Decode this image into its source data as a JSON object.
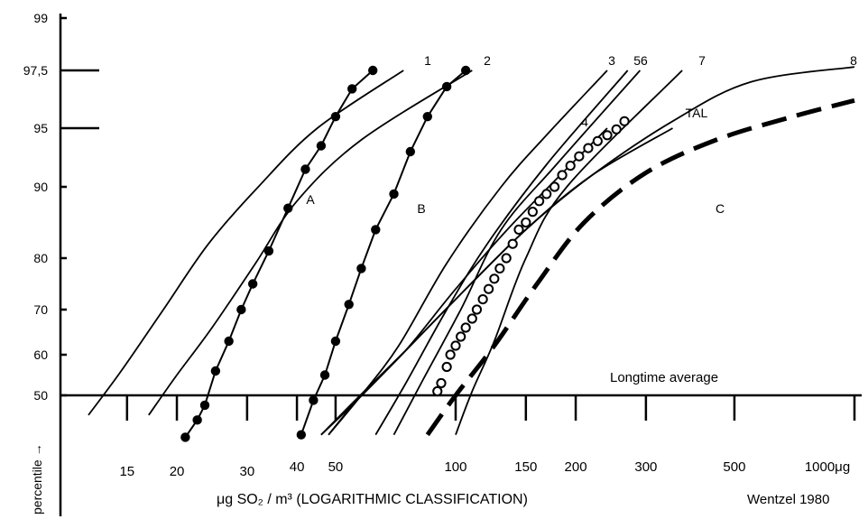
{
  "chart_data": {
    "type": "line",
    "xlabel": "μg SO₂ / m³ (LOGARITHMIC CLASSIFICATION)",
    "ylabel": "percentile →",
    "credit": "Wentzel 1980",
    "annotation": "Longtime average",
    "xscale": "log",
    "xlim": [
      11,
      1000
    ],
    "yscale": "probability",
    "ylim": [
      35,
      99
    ],
    "x_ticks": [
      15,
      20,
      30,
      40,
      50,
      100,
      150,
      200,
      300,
      500,
      1000
    ],
    "x_tick_labels": [
      "15",
      "20",
      "30",
      "40",
      "50",
      "100",
      "150",
      "200",
      "300",
      "500",
      "1000μg"
    ],
    "y_ticks": [
      50,
      60,
      70,
      80,
      90,
      95,
      97.5,
      99
    ],
    "y_tick_labels": [
      "50",
      "60",
      "70",
      "80",
      "90",
      "95",
      "97,5",
      "99"
    ],
    "reference_line": {
      "y": 50,
      "label": "Longtime average"
    },
    "series": [
      {
        "name": "1",
        "style": "line",
        "points": [
          [
            12,
            46
          ],
          [
            14.5,
            56
          ],
          [
            18.5,
            70
          ],
          [
            24,
            82
          ],
          [
            32,
            90
          ],
          [
            45,
            95
          ],
          [
            74,
            97.5
          ]
        ]
      },
      {
        "name": "2",
        "style": "line",
        "points": [
          [
            17,
            46
          ],
          [
            20,
            55
          ],
          [
            24.5,
            66
          ],
          [
            31.5,
            79
          ],
          [
            40,
            88
          ],
          [
            58,
            94
          ],
          [
            110,
            97.5
          ]
        ]
      },
      {
        "name": "3",
        "style": "line",
        "points": [
          [
            48,
            42
          ],
          [
            58,
            50
          ],
          [
            72,
            62
          ],
          [
            95,
            79
          ],
          [
            130,
            90
          ],
          [
            170,
            94.5
          ],
          [
            240,
            97.5
          ]
        ]
      },
      {
        "name": "4",
        "style": "line",
        "points": [
          [
            48,
            42
          ],
          [
            58,
            50
          ],
          [
            75,
            61
          ],
          [
            100,
            74
          ],
          [
            140,
            85
          ],
          [
            240,
            95
          ]
        ]
      },
      {
        "name": "5",
        "style": "line",
        "points": [
          [
            63,
            42
          ],
          [
            75,
            53
          ],
          [
            95,
            70
          ],
          [
            120,
            82
          ],
          [
            170,
            92
          ],
          [
            270,
            97.5
          ]
        ]
      },
      {
        "name": "6",
        "style": "line",
        "points": [
          [
            70,
            42
          ],
          [
            83,
            54
          ],
          [
            103,
            70
          ],
          [
            130,
            84
          ],
          [
            180,
            92
          ],
          [
            290,
            97.5
          ]
        ]
      },
      {
        "name": "7",
        "style": "line",
        "points": [
          [
            100,
            42
          ],
          [
            110,
            51
          ],
          [
            125,
            63
          ],
          [
            150,
            80
          ],
          [
            190,
            90
          ],
          [
            370,
            97.5
          ]
        ]
      },
      {
        "name": "8",
        "style": "line",
        "points": [
          [
            46,
            42
          ],
          [
            55,
            48
          ],
          [
            70,
            58
          ],
          [
            100,
            72
          ],
          [
            150,
            84
          ],
          [
            220,
            91
          ],
          [
            350,
            95.3
          ],
          [
            550,
            97
          ],
          [
            1000,
            97.6
          ]
        ]
      },
      {
        "name": "TAL",
        "style": "line",
        "points": [
          [
            46,
            42
          ],
          [
            56,
            49
          ],
          [
            75,
            61
          ],
          [
            100,
            72
          ],
          [
            150,
            84
          ],
          [
            220,
            91
          ],
          [
            350,
            95
          ]
        ]
      },
      {
        "name": "A",
        "style": "line-dots",
        "points": [
          [
            21,
            41.5
          ],
          [
            22.5,
            45
          ],
          [
            23.5,
            48
          ],
          [
            25,
            56
          ],
          [
            27,
            63
          ],
          [
            29,
            70
          ],
          [
            31,
            75
          ],
          [
            34,
            81
          ],
          [
            38,
            87
          ],
          [
            42,
            91.5
          ],
          [
            46,
            93.5
          ],
          [
            50,
            95.5
          ],
          [
            55,
            96.7
          ],
          [
            62,
            97.5
          ]
        ]
      },
      {
        "name": "B",
        "style": "line-dots",
        "points": [
          [
            41,
            42
          ],
          [
            44,
            49
          ],
          [
            47,
            55
          ],
          [
            50,
            63
          ],
          [
            54,
            71
          ],
          [
            58,
            78
          ],
          [
            63,
            84
          ],
          [
            70,
            89
          ],
          [
            77,
            93
          ],
          [
            85,
            95.5
          ],
          [
            95,
            96.8
          ],
          [
            106,
            97.5
          ]
        ]
      },
      {
        "name": "Longtime average",
        "style": "circles",
        "points": [
          [
            90,
            51
          ],
          [
            92,
            53
          ],
          [
            95,
            57
          ],
          [
            97,
            60
          ],
          [
            100,
            62
          ],
          [
            103,
            64
          ],
          [
            106,
            66
          ],
          [
            110,
            68
          ],
          [
            113,
            70
          ],
          [
            117,
            72
          ],
          [
            121,
            74
          ],
          [
            125,
            76
          ],
          [
            129,
            78
          ],
          [
            134,
            80
          ],
          [
            139,
            82
          ],
          [
            144,
            84
          ],
          [
            150,
            85
          ],
          [
            156,
            86.5
          ],
          [
            162,
            88
          ],
          [
            169,
            89
          ],
          [
            177,
            90
          ],
          [
            185,
            91
          ],
          [
            194,
            91.8
          ],
          [
            204,
            92.6
          ],
          [
            215,
            93.3
          ],
          [
            227,
            93.9
          ],
          [
            240,
            94.4
          ],
          [
            253,
            94.9
          ],
          [
            265,
            95.3
          ]
        ]
      },
      {
        "name": "C",
        "style": "dashed",
        "points": [
          [
            85,
            42
          ],
          [
            100,
            50
          ],
          [
            125,
            62
          ],
          [
            160,
            75
          ],
          [
            210,
            85
          ],
          [
            300,
            91.2
          ],
          [
            450,
            94
          ],
          [
            700,
            95.5
          ],
          [
            1000,
            96.2
          ]
        ]
      }
    ],
    "curve_labels": [
      "1",
      "2",
      "3",
      "4",
      "56",
      "7",
      "8",
      "TAL",
      "A",
      "B",
      "C"
    ]
  }
}
